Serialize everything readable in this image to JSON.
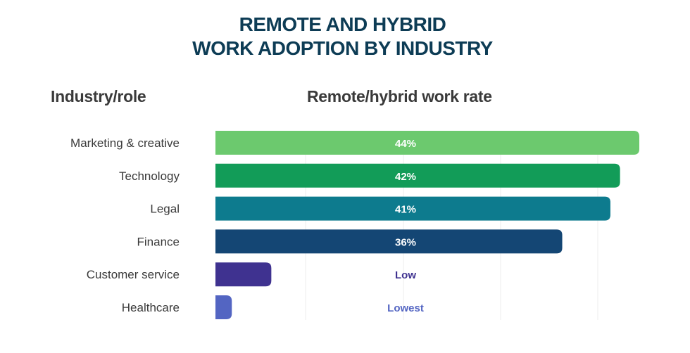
{
  "chart_data": {
    "type": "bar",
    "orientation": "horizontal",
    "title": "REMOTE AND HYBRID WORK ADOPTION BY INDUSTRY",
    "title_lines": [
      "REMOTE AND HYBRID",
      "WORK ADOPTION BY INDUSTRY"
    ],
    "category_header": "Industry/role",
    "value_header": "Remote/hybrid work rate",
    "unit": "%",
    "xlim": [
      0,
      44
    ],
    "grid": true,
    "categories": [
      "Marketing & creative",
      "Technology",
      "Legal",
      "Finance",
      "Customer service",
      "Healthcare"
    ],
    "values": [
      44,
      42,
      41,
      36,
      5.8,
      1.7
    ],
    "data_labels": [
      "44%",
      "42%",
      "41%",
      "36%",
      "Low",
      "Lowest"
    ],
    "colors": [
      "#6cc96e",
      "#129c58",
      "#0d7b8e",
      "#144674",
      "#3f3290",
      "#5365c2"
    ],
    "label_colors": [
      "#ffffff",
      "#ffffff",
      "#ffffff",
      "#ffffff",
      "#3f3290",
      "#5365c2"
    ]
  }
}
